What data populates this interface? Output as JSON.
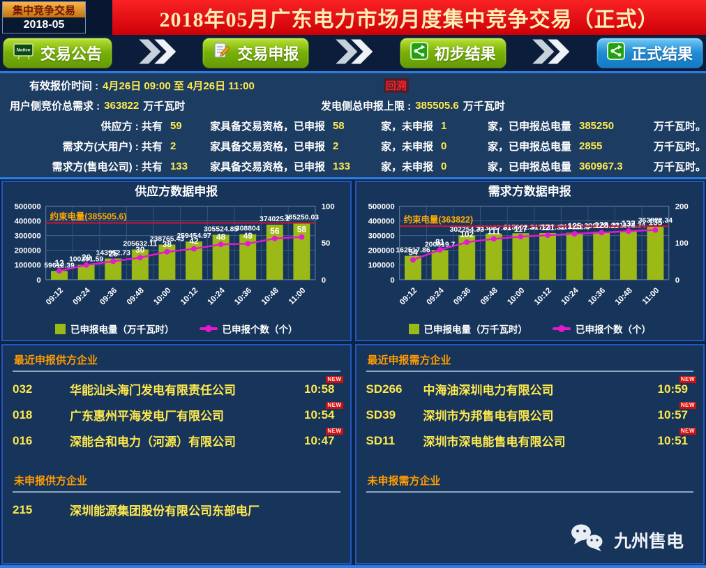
{
  "header": {
    "box_title": "集中竞争交易",
    "box_period": "2018-05",
    "banner_title": "2018年05月广东电力市场月度集中竞争交易（正式）"
  },
  "nav": {
    "items": [
      {
        "label": "交易公告",
        "icon": "notice-icon",
        "style": "green"
      },
      {
        "label": "交易申报",
        "icon": "report-icon",
        "style": "green"
      },
      {
        "label": "初步结果",
        "icon": "share-icon",
        "style": "green"
      },
      {
        "label": "正式结果",
        "icon": "share-icon",
        "style": "blue"
      }
    ],
    "notice_icon_text": "Notice"
  },
  "info": {
    "quote_time_label": "有效报价时间 :",
    "quote_time_value": "4月26日 09:00 至 4月26日 11:00",
    "backtrack_label": "回溯",
    "user_demand_label": "用户侧竞价总需求 :",
    "user_demand_value": "363822",
    "user_demand_unit": "万千瓦时",
    "gen_cap_label": "发电侧总申报上限 :",
    "gen_cap_value": "385505.6",
    "gen_cap_unit": "万千瓦时",
    "stat_rows": [
      {
        "label": "供应方 : 共有",
        "qualified": "59",
        "t1": "家具备交易资格，已申报",
        "declared": "58",
        "t2": "家，未申报",
        "undeclared": "1",
        "t3": "家，已申报总电量",
        "volume": "385250",
        "unit": "万千瓦时。"
      },
      {
        "label": "需求方(大用户) : 共有",
        "qualified": "2",
        "t1": "家具备交易资格，已申报",
        "declared": "2",
        "t2": "家，未申报",
        "undeclared": "0",
        "t3": "家，已申报总电量",
        "volume": "2855",
        "unit": "万千瓦时。"
      },
      {
        "label": "需求方(售电公司) : 共有",
        "qualified": "133",
        "t1": "家具备交易资格，已申报",
        "declared": "133",
        "t2": "家，未申报",
        "undeclared": "0",
        "t3": "家，已申报总电量",
        "volume": "360967.3",
        "unit": "万千瓦时。"
      }
    ]
  },
  "chart_data": [
    {
      "type": "bar+line",
      "title": "供应方数据申报",
      "categories": [
        "09:12",
        "09:24",
        "09:36",
        "09:48",
        "10:00",
        "10:12",
        "10:24",
        "10:36",
        "10:48",
        "11:00"
      ],
      "series": [
        {
          "name": "已申报电量（万千瓦时）",
          "type": "bar",
          "axis": "left",
          "color": "#9cba17",
          "values": [
            59612.39,
            100201.59,
            143952.73,
            205632.11,
            238765.43,
            259454.97,
            305524.85,
            308804,
            374025.2,
            385250.03
          ]
        },
        {
          "name": "已申报个数（个）",
          "type": "line",
          "axis": "right",
          "color": "#e619d0",
          "values": [
            12,
            20,
            25,
            30,
            38,
            42,
            48,
            49,
            56,
            58
          ]
        }
      ],
      "constraint": {
        "label": "约束电量(385505.6)",
        "value": 385505.6,
        "color": "#d11236"
      },
      "y_left": {
        "min": 0,
        "max": 500000,
        "ticks": [
          0,
          100000,
          200000,
          300000,
          400000,
          500000
        ]
      },
      "y_right": {
        "min": 0,
        "max": 100,
        "ticks": [
          0,
          50,
          100
        ]
      },
      "grid": true,
      "legend_position": "bottom"
    },
    {
      "type": "bar+line",
      "title": "需求方数据申报",
      "categories": [
        "09:12",
        "09:24",
        "09:36",
        "09:48",
        "10:00",
        "10:12",
        "10:24",
        "10:36",
        "10:48",
        "11:00"
      ],
      "series": [
        {
          "name": "已申报电量（万千瓦时）",
          "type": "bar",
          "axis": "left",
          "color": "#9cba17",
          "values": [
            162517.86,
            200819.7,
            302254.33,
            313087.81,
            315902.34,
            317257.31,
            319122.3,
            326128.33,
            331132.34,
            363822.34
          ]
        },
        {
          "name": "已申报个数（个）",
          "type": "line",
          "axis": "right",
          "color": "#e619d0",
          "values": [
            54,
            81,
            102,
            111,
            117,
            121,
            125,
            128,
            132,
            135
          ]
        }
      ],
      "constraint": {
        "label": "约束电量(363822)",
        "value": 363822,
        "color": "#d11236"
      },
      "y_left": {
        "min": 0,
        "max": 500000,
        "ticks": [
          0,
          100000,
          200000,
          300000,
          400000,
          500000
        ]
      },
      "y_right": {
        "min": 0,
        "max": 200,
        "ticks": [
          0,
          100,
          200
        ]
      },
      "grid": true,
      "legend_position": "bottom"
    }
  ],
  "lists": {
    "supply_recent": {
      "heading": "最近申报供方企业",
      "rows": [
        {
          "code": "032",
          "name": "华能汕头海门发电有限责任公司",
          "time": "10:58",
          "badge": "NEW"
        },
        {
          "code": "018",
          "name": "广东惠州平海发电厂有限公司",
          "time": "10:54",
          "badge": "NEW"
        },
        {
          "code": "016",
          "name": "深能合和电力（河源）有限公司",
          "time": "10:47",
          "badge": "NEW"
        }
      ]
    },
    "supply_pending": {
      "heading": "未申报供方企业",
      "rows": [
        {
          "code": "215",
          "name": "深圳能源集团股份有限公司东部电厂",
          "time": "",
          "badge": ""
        }
      ]
    },
    "demand_recent": {
      "heading": "最近申报需方企业",
      "rows": [
        {
          "code": "SD266",
          "name": "中海油深圳电力有限公司",
          "time": "10:59",
          "badge": "NEW"
        },
        {
          "code": "SD39",
          "name": "深圳市为邦售电有限公司",
          "time": "10:57",
          "badge": "NEW"
        },
        {
          "code": "SD11",
          "name": "深圳市深电能售电有限公司",
          "time": "10:51",
          "badge": "NEW"
        }
      ]
    },
    "demand_pending": {
      "heading": "未申报需方企业",
      "rows": []
    }
  },
  "footer": {
    "brand": "九州售电"
  }
}
